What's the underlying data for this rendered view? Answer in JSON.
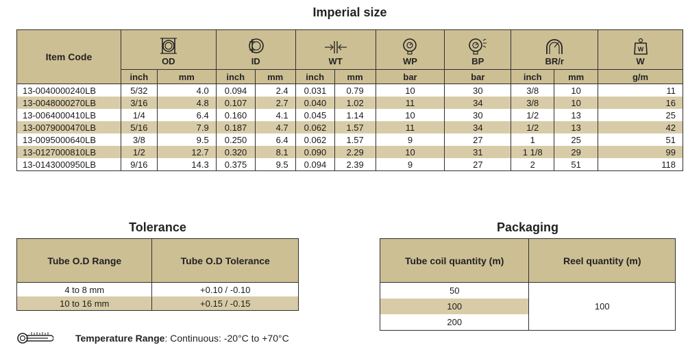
{
  "title": "Imperial size",
  "main_table": {
    "item_code_label": "Item Code",
    "columns": [
      {
        "label": "OD",
        "icon": "outer-diameter-icon"
      },
      {
        "label": "ID",
        "icon": "inner-diameter-icon"
      },
      {
        "label": "WT",
        "icon": "wall-thickness-icon"
      },
      {
        "label": "WP",
        "icon": "pressure-gauge-icon"
      },
      {
        "label": "BP",
        "icon": "burst-gauge-icon"
      },
      {
        "label": "BR/r",
        "icon": "bend-radius-icon"
      },
      {
        "label": "W",
        "icon": "weight-icon"
      }
    ],
    "units": [
      "inch",
      "mm",
      "inch",
      "mm",
      "inch",
      "mm",
      "bar",
      "bar",
      "inch",
      "mm",
      "g/m"
    ],
    "rows": [
      [
        "13-0040000240LB",
        "5/32",
        "4.0",
        "0.094",
        "2.4",
        "0.031",
        "0.79",
        "10",
        "30",
        "3/8",
        "10",
        "11"
      ],
      [
        "13-0048000270LB",
        "3/16",
        "4.8",
        "0.107",
        "2.7",
        "0.040",
        "1.02",
        "11",
        "34",
        "3/8",
        "10",
        "16"
      ],
      [
        "13-0064000410LB",
        "1/4",
        "6.4",
        "0.160",
        "4.1",
        "0.045",
        "1.14",
        "10",
        "30",
        "1/2",
        "13",
        "25"
      ],
      [
        "13-0079000470LB",
        "5/16",
        "7.9",
        "0.187",
        "4.7",
        "0.062",
        "1.57",
        "11",
        "34",
        "1/2",
        "13",
        "42"
      ],
      [
        "13-0095000640LB",
        "3/8",
        "9.5",
        "0.250",
        "6.4",
        "0.062",
        "1.57",
        "9",
        "27",
        "1",
        "25",
        "51"
      ],
      [
        "13-0127000810LB",
        "1/2",
        "12.7",
        "0.320",
        "8.1",
        "0.090",
        "2.29",
        "10",
        "31",
        "1 1/8",
        "29",
        "99"
      ],
      [
        "13-0143000950LB",
        "9/16",
        "14.3",
        "0.375",
        "9.5",
        "0.094",
        "2.39",
        "9",
        "27",
        "2",
        "51",
        "118"
      ]
    ]
  },
  "tolerance": {
    "title": "Tolerance",
    "headers": [
      "Tube O.D Range",
      "Tube O.D Tolerance"
    ],
    "rows": [
      [
        "4 to 8 mm",
        "+0.10 / -0.10"
      ],
      [
        "10 to 16 mm",
        "+0.15 / -0.15"
      ]
    ]
  },
  "packaging": {
    "title": "Packaging",
    "headers": [
      "Tube coil quantity (m)",
      "Reel quantity (m)"
    ],
    "coil_values": [
      "50",
      "100",
      "200"
    ],
    "reel_value": "100"
  },
  "temperature": {
    "icon": "thermometer-icon",
    "label": "Temperature Range",
    "value": ": Continuous: -20°C to +70°C"
  },
  "colors": {
    "header_bg": "#cdbf94",
    "band_bg": "#d8cca8",
    "border": "#2e2e2e"
  }
}
